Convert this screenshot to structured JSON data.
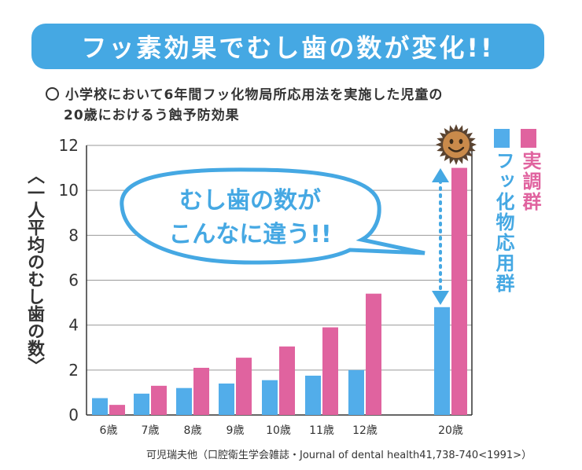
{
  "banner": {
    "title": "フッ素効果でむし歯の数が変化!!"
  },
  "subtitle": {
    "line1": "小学校において6年間フッ化物局所応用法を実施した児童の",
    "line2": "20歳におけるう蝕予防効果"
  },
  "bubble": {
    "line1": "むし歯の数が",
    "line2": "こんなに違う!!"
  },
  "source": "可児瑞夫他（口腔衛生学会雑誌・Journal of dental health41,738-740<1991>）",
  "colors": {
    "fluoride": "#52adea",
    "control": "#e0639f",
    "accent": "#45a8e3"
  },
  "icons": {
    "smile": "smiling-sun-icon",
    "arrow": "double-arrow-icon"
  },
  "chart_data": {
    "type": "bar",
    "ylabel": "〈一人平均のむし歯の数〉",
    "ylim": [
      0,
      12
    ],
    "yticks": [
      "0",
      "2",
      "4",
      "6",
      "8",
      "10",
      "12"
    ],
    "categories": [
      "6歳",
      "7歳",
      "8歳",
      "9歳",
      "10歳",
      "11歳",
      "12歳",
      "20歳"
    ],
    "series": [
      {
        "name": "フッ化物応用群",
        "color": "#52adea",
        "values": [
          0.75,
          0.95,
          1.2,
          1.4,
          1.55,
          1.75,
          2.0,
          4.8
        ]
      },
      {
        "name": "実調群",
        "color": "#e0639f",
        "values": [
          0.45,
          1.3,
          2.1,
          2.55,
          3.05,
          3.9,
          5.4,
          11.0
        ]
      }
    ],
    "grid": true,
    "legend": "right"
  }
}
